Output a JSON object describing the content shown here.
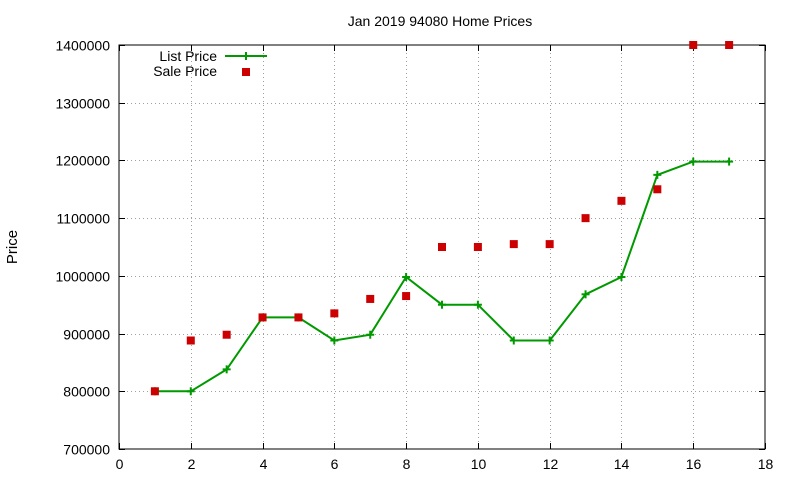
{
  "chart_data": {
    "type": "line",
    "title": "Jan 2019 94080 Home Prices",
    "xlabel": "",
    "ylabel": "Price",
    "xlim": [
      0,
      18
    ],
    "ylim": [
      700000,
      1400000
    ],
    "xticks": [
      0,
      2,
      4,
      6,
      8,
      10,
      12,
      14,
      16,
      18
    ],
    "yticks": [
      700000,
      800000,
      900000,
      1000000,
      1100000,
      1200000,
      1300000,
      1400000
    ],
    "grid": true,
    "legend": "top-left",
    "series": [
      {
        "name": "List Price",
        "style": "line+plus",
        "color": "#009900",
        "x": [
          1,
          2,
          3,
          4,
          5,
          6,
          7,
          8,
          9,
          10,
          11,
          12,
          13,
          14,
          15,
          16,
          17
        ],
        "y": [
          800000,
          800000,
          838000,
          928000,
          928000,
          888000,
          898000,
          998000,
          950000,
          950000,
          888000,
          888000,
          968000,
          998000,
          1175000,
          1198000,
          1198000
        ]
      },
      {
        "name": "Sale Price",
        "style": "square-marker",
        "color": "#cc0000",
        "x": [
          1,
          2,
          3,
          4,
          5,
          6,
          7,
          8,
          9,
          10,
          11,
          12,
          13,
          14,
          15,
          16,
          17
        ],
        "y": [
          800000,
          888000,
          898000,
          928000,
          928000,
          935000,
          960000,
          965000,
          1050000,
          1050000,
          1055000,
          1055000,
          1100000,
          1130000,
          1150000,
          1400000,
          1400000
        ]
      }
    ]
  }
}
